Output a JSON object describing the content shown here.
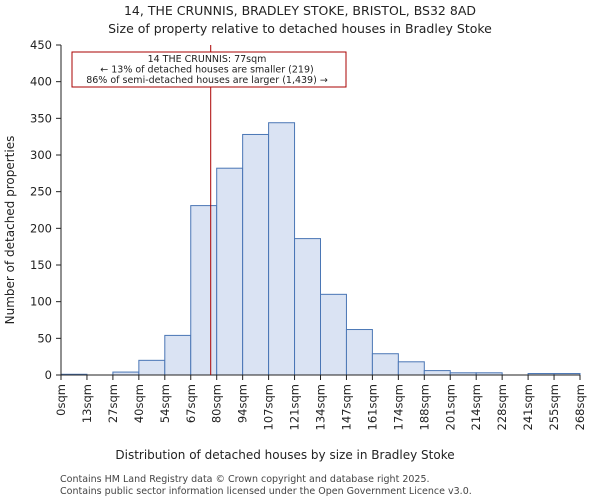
{
  "chart_data": {
    "type": "bar",
    "title_lines": [
      "14, THE CRUNNIS, BRADLEY STOKE, BRISTOL, BS32 8AD",
      "Size of property relative to detached houses in Bradley Stoke"
    ],
    "xlabel": "Distribution of detached houses by size in Bradley Stoke",
    "ylabel": "Number of detached properties",
    "ylim": [
      0,
      450
    ],
    "yticks": [
      0,
      50,
      100,
      150,
      200,
      250,
      300,
      350,
      400,
      450
    ],
    "bin_edges": [
      0,
      13,
      27,
      40,
      54,
      67,
      80,
      94,
      107,
      121,
      134,
      147,
      161,
      174,
      188,
      201,
      214,
      228,
      241,
      255,
      268
    ],
    "tick_labels": [
      "0sqm",
      "13sqm",
      "27sqm",
      "40sqm",
      "54sqm",
      "67sqm",
      "80sqm",
      "94sqm",
      "107sqm",
      "121sqm",
      "134sqm",
      "147sqm",
      "161sqm",
      "174sqm",
      "188sqm",
      "201sqm",
      "214sqm",
      "228sqm",
      "241sqm",
      "255sqm",
      "268sqm"
    ],
    "values": [
      1,
      0,
      4,
      20,
      54,
      231,
      282,
      328,
      344,
      186,
      110,
      62,
      29,
      18,
      6,
      3,
      3,
      0,
      2,
      2
    ],
    "marker_value": 77,
    "annotation_lines": [
      "14 THE CRUNNIS: 77sqm",
      "← 13% of detached houses are smaller (219)",
      "86% of semi-detached houses are larger (1,439) →"
    ],
    "colors": {
      "bar_fill": "#dae3f3",
      "bar_stroke": "#4a76b5",
      "marker": "#aa0000",
      "annotation_border": "#aa0000"
    },
    "grid": false
  },
  "footer": {
    "line1": "Contains HM Land Registry data © Crown copyright and database right 2025.",
    "line2": "Contains public sector information licensed under the Open Government Licence v3.0."
  }
}
